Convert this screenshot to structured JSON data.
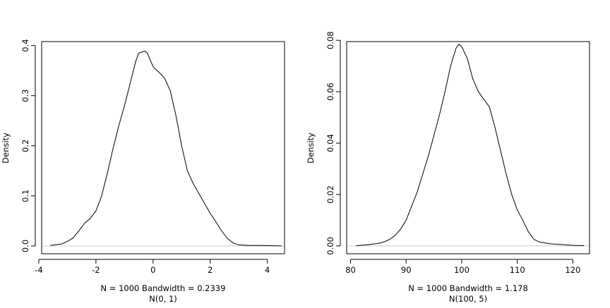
{
  "chart_data": [
    {
      "type": "line",
      "title": "",
      "xlabel_line1": "N = 1000   Bandwidth = 0.2339",
      "xlabel_line2": "N(0, 1)",
      "ylabel": "Density",
      "xlim": [
        -3.9,
        4.6
      ],
      "ylim": [
        -0.0155,
        0.4079
      ],
      "xticks": [
        -4,
        -2,
        0,
        2,
        4
      ],
      "xtick_labels": [
        "-4",
        "-2",
        "0",
        "2",
        "4"
      ],
      "yticks": [
        0.0,
        0.1,
        0.2,
        0.3,
        0.4
      ],
      "ytick_labels": [
        "0.0",
        "0.1",
        "0.2",
        "0.3",
        "0.4"
      ],
      "grid": false,
      "zero_line_color": "#cccccc",
      "line_color": "#000000",
      "series": [
        {
          "x": [
            -3.6,
            -3.2,
            -3.0,
            -2.8,
            -2.6,
            -2.4,
            -2.2,
            -2.0,
            -1.8,
            -1.6,
            -1.4,
            -1.2,
            -1.0,
            -0.8,
            -0.6,
            -0.5,
            -0.4,
            -0.3,
            -0.2,
            -0.1,
            0.0,
            0.1,
            0.2,
            0.4,
            0.6,
            0.8,
            1.0,
            1.2,
            1.4,
            1.6,
            1.8,
            2.0,
            2.2,
            2.4,
            2.6,
            2.8,
            3.0,
            3.4,
            3.8,
            4.2,
            4.5
          ],
          "y": [
            0.001,
            0.004,
            0.009,
            0.016,
            0.03,
            0.045,
            0.055,
            0.07,
            0.1,
            0.145,
            0.195,
            0.24,
            0.28,
            0.325,
            0.37,
            0.385,
            0.387,
            0.389,
            0.385,
            0.371,
            0.358,
            0.352,
            0.347,
            0.335,
            0.31,
            0.26,
            0.2,
            0.15,
            0.125,
            0.105,
            0.085,
            0.065,
            0.048,
            0.03,
            0.015,
            0.006,
            0.002,
            0.001,
            0.001,
            0.0005,
            0.0001
          ]
        }
      ]
    },
    {
      "type": "line",
      "title": "",
      "xlabel_line1": "N = 1000   Bandwidth = 1.178",
      "xlabel_line2": "N(100, 5)",
      "ylabel": "Density",
      "xlim": [
        79.3,
        123.0
      ],
      "ylim": [
        -0.00305,
        0.0795
      ],
      "xticks": [
        80,
        90,
        100,
        110,
        120
      ],
      "xtick_labels": [
        "80",
        "90",
        "100",
        "110",
        "120"
      ],
      "yticks": [
        0.0,
        0.02,
        0.04,
        0.06,
        0.08
      ],
      "ytick_labels": [
        "0.00",
        "0.02",
        "0.04",
        "0.06",
        "0.08"
      ],
      "grid": false,
      "zero_line_color": "#cccccc",
      "line_color": "#000000",
      "series": [
        {
          "x": [
            81,
            83,
            85,
            86,
            87,
            88,
            89,
            90,
            91,
            92,
            93,
            94,
            95,
            96,
            97,
            98,
            99,
            99.5,
            100,
            101,
            102,
            103,
            104,
            105,
            106,
            107,
            108,
            109,
            110,
            111,
            112,
            113,
            114,
            116,
            118,
            120,
            122
          ],
          "y": [
            0.0001,
            0.0004,
            0.001,
            0.0015,
            0.0025,
            0.004,
            0.0065,
            0.01,
            0.0155,
            0.021,
            0.028,
            0.035,
            0.043,
            0.051,
            0.06,
            0.07,
            0.077,
            0.0785,
            0.0775,
            0.073,
            0.065,
            0.06,
            0.057,
            0.054,
            0.046,
            0.037,
            0.028,
            0.02,
            0.014,
            0.01,
            0.0055,
            0.0025,
            0.0015,
            0.0008,
            0.0005,
            0.0002,
            0.0001
          ]
        }
      ]
    }
  ]
}
